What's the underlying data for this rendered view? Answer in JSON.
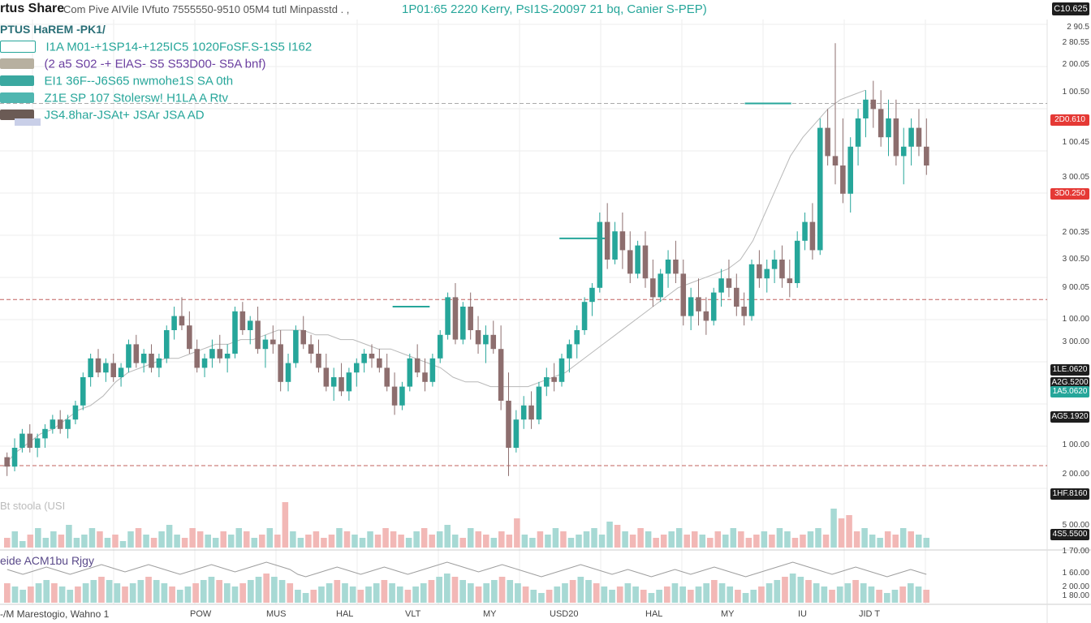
{
  "header": {
    "ticker": "rtus Share",
    "meta": "Com Pive AIVile IVfuto 7555550-9510 05M4 tutl Minpasstd . ,",
    "highlight": "1P01:65 2220 Kerry, PsI1S-20097 21 bq, Canier S-PEP)",
    "mode_badge": "C10.625"
  },
  "legend": {
    "title": "PTUS HaREM -PK1/",
    "rows": [
      {
        "text": "I1A M01-+1SP14-+125IC5 1020FoSF.S-1S5 I162",
        "chip_color": "#ffffff",
        "text_color": "#26a69a"
      },
      {
        "text": "(2 a5 S02 -+ ElAS- S5 S53D00- S5A bnf)",
        "chip_color": "#b7b0a0",
        "text_color": "#6b3fa0"
      },
      {
        "text": "EI1 36F--J6S65 nwmohe1S SA 0th",
        "chip_color": "#3aa8a0",
        "text_color": "#26a69a"
      },
      {
        "text": "Z1E SP 107 Stolersw! H1LA A Rtv",
        "chip_color": "#4fb6b0",
        "text_color": "#26a69a"
      },
      {
        "text": "JS4.8har-JSAt+ JSAr JSA AD",
        "chip_color": "#6b5b55",
        "text_color": "#26a69a"
      }
    ]
  },
  "volume_label": "Bt stoola (USI",
  "indicator_label": "eide ACM1bu Rjgy",
  "footer_label": "-/M Marestogio, Wahno 1",
  "colors": {
    "up": "#26a69a",
    "down": "#ef5350",
    "candle_down": "#8d6e6e",
    "line": "#26a69a",
    "hline_red": "#c0605e",
    "grid": "#eeeeee"
  },
  "yaxis": {
    "ticks": [
      "2 90.5",
      "2 80.55",
      "2 00.05",
      "1 00.50",
      "1 00.45",
      "3 00.05",
      "2 00.35",
      "3 00.50",
      "9 00.05",
      "1 00.00",
      "3 00.00",
      "1 00.00",
      "2 00.00",
      "5 00.00",
      "1 70.00",
      "1 60.00",
      "2 00.00",
      "1 80.00"
    ],
    "badges": [
      {
        "label": "2D0.610",
        "color": "#e53935"
      },
      {
        "label": "3D0.250",
        "color": "#e53935"
      },
      {
        "label": "1LE.0620",
        "color": "#1e1e1e"
      },
      {
        "label": "A2G.5200",
        "color": "#1e1e1e"
      },
      {
        "label": "1A5.0620",
        "color": "#26a69a"
      },
      {
        "label": "AG5.1920",
        "color": "#1e1e1e"
      },
      {
        "label": "1HF.8160",
        "color": "#1e1e1e"
      },
      {
        "label": "4S5.5500",
        "color": "#1e1e1e"
      }
    ]
  },
  "xaxis": {
    "ticks": [
      "POW",
      "MUS",
      "HAL",
      "VLT",
      "MY",
      "USD20",
      "HAL",
      "MY",
      "IU",
      "JID T"
    ]
  },
  "chart_data": {
    "type": "candlestick",
    "title": "rtus Share",
    "xlabel": "",
    "ylabel": "",
    "grid": true,
    "ylim": [
      0,
      100
    ],
    "candles": [
      [
        8,
        9,
        4,
        6
      ],
      [
        6,
        12,
        5,
        10
      ],
      [
        10,
        14,
        9,
        13
      ],
      [
        13,
        15,
        9,
        10
      ],
      [
        10,
        13,
        8,
        12
      ],
      [
        12,
        15,
        10,
        14
      ],
      [
        14,
        17,
        13,
        16
      ],
      [
        16,
        18,
        13,
        14
      ],
      [
        14,
        17,
        12,
        16
      ],
      [
        16,
        20,
        15,
        19
      ],
      [
        19,
        26,
        18,
        25
      ],
      [
        25,
        30,
        23,
        29
      ],
      [
        29,
        31,
        25,
        26
      ],
      [
        26,
        29,
        24,
        28
      ],
      [
        28,
        30,
        24,
        25
      ],
      [
        25,
        28,
        23,
        27
      ],
      [
        27,
        33,
        26,
        32
      ],
      [
        32,
        34,
        27,
        28
      ],
      [
        28,
        31,
        26,
        30
      ],
      [
        30,
        32,
        26,
        27
      ],
      [
        27,
        30,
        25,
        29
      ],
      [
        29,
        36,
        28,
        35
      ],
      [
        35,
        40,
        33,
        38
      ],
      [
        38,
        42,
        35,
        36
      ],
      [
        36,
        39,
        30,
        31
      ],
      [
        31,
        33,
        26,
        27
      ],
      [
        27,
        30,
        25,
        29
      ],
      [
        29,
        33,
        27,
        31
      ],
      [
        31,
        34,
        28,
        29
      ],
      [
        29,
        32,
        26,
        30
      ],
      [
        30,
        40,
        29,
        39
      ],
      [
        39,
        41,
        34,
        35
      ],
      [
        35,
        38,
        32,
        37
      ],
      [
        37,
        40,
        30,
        31
      ],
      [
        31,
        34,
        27,
        33
      ],
      [
        33,
        36,
        30,
        32
      ],
      [
        32,
        35,
        22,
        24
      ],
      [
        24,
        30,
        22,
        28
      ],
      [
        28,
        36,
        27,
        35
      ],
      [
        35,
        38,
        31,
        32
      ],
      [
        32,
        34,
        28,
        30
      ],
      [
        30,
        33,
        26,
        27
      ],
      [
        27,
        30,
        22,
        23
      ],
      [
        23,
        27,
        20,
        25
      ],
      [
        25,
        28,
        21,
        22
      ],
      [
        22,
        27,
        20,
        26
      ],
      [
        26,
        29,
        23,
        28
      ],
      [
        28,
        31,
        26,
        30
      ],
      [
        30,
        32,
        27,
        29
      ],
      [
        29,
        31,
        26,
        27
      ],
      [
        27,
        30,
        22,
        23
      ],
      [
        23,
        26,
        17,
        19
      ],
      [
        19,
        24,
        18,
        23
      ],
      [
        23,
        30,
        22,
        29
      ],
      [
        29,
        32,
        25,
        26
      ],
      [
        26,
        29,
        22,
        24
      ],
      [
        24,
        30,
        23,
        29
      ],
      [
        29,
        35,
        28,
        34
      ],
      [
        34,
        43,
        33,
        42
      ],
      [
        42,
        45,
        32,
        33
      ],
      [
        33,
        41,
        32,
        40
      ],
      [
        40,
        43,
        33,
        35
      ],
      [
        35,
        38,
        30,
        32
      ],
      [
        32,
        36,
        28,
        34
      ],
      [
        34,
        37,
        30,
        31
      ],
      [
        31,
        36,
        18,
        20
      ],
      [
        20,
        26,
        4,
        10
      ],
      [
        10,
        18,
        9,
        16
      ],
      [
        16,
        21,
        14,
        19
      ],
      [
        19,
        22,
        14,
        16
      ],
      [
        16,
        24,
        15,
        23
      ],
      [
        23,
        27,
        21,
        25
      ],
      [
        25,
        28,
        22,
        24
      ],
      [
        24,
        30,
        23,
        29
      ],
      [
        29,
        33,
        26,
        32
      ],
      [
        32,
        36,
        29,
        35
      ],
      [
        35,
        42,
        34,
        41
      ],
      [
        41,
        45,
        38,
        44
      ],
      [
        44,
        60,
        43,
        58
      ],
      [
        58,
        62,
        48,
        50
      ],
      [
        50,
        58,
        49,
        56
      ],
      [
        56,
        60,
        48,
        52
      ],
      [
        52,
        56,
        45,
        47
      ],
      [
        47,
        54,
        46,
        53
      ],
      [
        53,
        56,
        44,
        46
      ],
      [
        46,
        50,
        40,
        42
      ],
      [
        42,
        48,
        41,
        47
      ],
      [
        47,
        52,
        44,
        50
      ],
      [
        50,
        54,
        45,
        47
      ],
      [
        47,
        50,
        36,
        38
      ],
      [
        38,
        44,
        35,
        42
      ],
      [
        42,
        46,
        36,
        39
      ],
      [
        39,
        42,
        34,
        37
      ],
      [
        37,
        44,
        36,
        43
      ],
      [
        43,
        48,
        40,
        46
      ],
      [
        46,
        50,
        42,
        44
      ],
      [
        44,
        47,
        38,
        40
      ],
      [
        40,
        43,
        36,
        38
      ],
      [
        38,
        50,
        37,
        49
      ],
      [
        49,
        52,
        44,
        46
      ],
      [
        46,
        50,
        43,
        48
      ],
      [
        48,
        52,
        45,
        50
      ],
      [
        50,
        53,
        44,
        46
      ],
      [
        46,
        50,
        42,
        45
      ],
      [
        45,
        56,
        44,
        54
      ],
      [
        54,
        60,
        52,
        58
      ],
      [
        58,
        62,
        50,
        52
      ],
      [
        52,
        80,
        51,
        78
      ],
      [
        78,
        82,
        70,
        72
      ],
      [
        72,
        96,
        66,
        70
      ],
      [
        70,
        80,
        62,
        64
      ],
      [
        64,
        76,
        60,
        74
      ],
      [
        74,
        82,
        70,
        80
      ],
      [
        80,
        86,
        76,
        84
      ],
      [
        84,
        88,
        78,
        82
      ],
      [
        82,
        86,
        74,
        76
      ],
      [
        76,
        84,
        72,
        80
      ],
      [
        80,
        84,
        70,
        72
      ],
      [
        72,
        78,
        66,
        74
      ],
      [
        74,
        80,
        70,
        78
      ],
      [
        78,
        82,
        72,
        74
      ],
      [
        74,
        80,
        68,
        70
      ]
    ],
    "overlay_line": [
      6,
      9,
      11,
      13,
      14,
      16,
      18,
      19,
      21,
      24,
      26,
      27,
      28,
      29,
      29,
      30,
      31,
      32,
      32,
      33,
      33,
      34,
      35,
      35,
      35,
      34,
      34,
      33,
      33,
      32,
      31,
      31,
      30,
      29,
      28,
      27,
      25,
      24,
      24,
      23,
      23,
      23,
      23,
      24,
      25,
      26,
      28,
      30,
      32,
      34,
      36,
      38,
      40,
      42,
      44,
      45,
      46,
      47,
      48,
      50,
      54,
      60,
      66,
      72,
      76,
      79,
      82,
      84,
      85,
      86
    ],
    "hlines": [
      {
        "value": 41.5,
        "color": "#c0605e",
        "dash": true
      },
      {
        "value": 6.2,
        "color": "#c0605e",
        "dash": true
      },
      {
        "value": 83.2,
        "color": "#aaaaaa",
        "dash": true
      },
      {
        "value": 40.0,
        "color": "#26a69a",
        "dash": false,
        "from": 0.42,
        "to": 0.46
      },
      {
        "value": 54.5,
        "color": "#26a69a",
        "dash": false,
        "from": 0.6,
        "to": 0.65
      },
      {
        "value": 83.2,
        "color": "#26a69a",
        "dash": false,
        "from": 0.8,
        "to": 0.85
      }
    ],
    "volume": [
      3,
      5,
      2,
      4,
      6,
      3,
      5,
      4,
      7,
      3,
      4,
      6,
      5,
      3,
      4,
      2,
      5,
      6,
      4,
      3,
      5,
      7,
      4,
      3,
      6,
      5,
      4,
      3,
      5,
      4,
      6,
      5,
      3,
      4,
      6,
      4,
      14,
      5,
      3,
      4,
      5,
      3,
      4,
      6,
      5,
      4,
      3,
      5,
      4,
      6,
      5,
      4,
      3,
      5,
      6,
      4,
      5,
      7,
      4,
      3,
      6,
      5,
      4,
      3,
      5,
      4,
      9,
      4,
      3,
      5,
      4,
      6,
      5,
      3,
      4,
      5,
      6,
      4,
      8,
      7,
      5,
      4,
      6,
      5,
      3,
      4,
      5,
      6,
      4,
      5,
      4,
      3,
      5,
      4,
      6,
      5,
      3,
      4,
      5,
      4,
      6,
      5,
      3,
      4,
      5,
      6,
      4,
      12,
      9,
      10,
      5,
      6,
      4,
      3,
      5,
      4,
      6,
      5,
      4,
      3
    ],
    "oscillator": [
      6,
      5,
      4,
      5,
      6,
      7,
      6,
      5,
      4,
      5,
      6,
      7,
      8,
      7,
      6,
      5,
      6,
      7,
      8,
      7,
      6,
      5,
      4,
      5,
      6,
      7,
      8,
      7,
      6,
      5,
      6,
      7,
      8,
      9,
      8,
      7,
      6,
      4,
      3,
      4,
      5,
      6,
      7,
      6,
      5,
      4,
      5,
      6,
      7,
      6,
      5,
      4,
      5,
      6,
      7,
      8,
      9,
      8,
      7,
      6,
      5,
      6,
      7,
      8,
      7,
      6,
      5,
      4,
      3,
      4,
      5,
      6,
      7,
      8,
      7,
      6,
      5,
      4,
      5,
      6,
      5,
      4,
      3,
      4,
      5,
      6,
      5,
      4,
      5,
      6,
      7,
      6,
      5,
      4,
      3,
      4,
      5,
      6,
      7,
      8,
      9,
      8,
      7,
      6,
      5,
      4,
      5,
      6,
      7,
      6,
      5,
      4,
      3,
      4,
      5,
      6,
      5,
      4
    ]
  }
}
